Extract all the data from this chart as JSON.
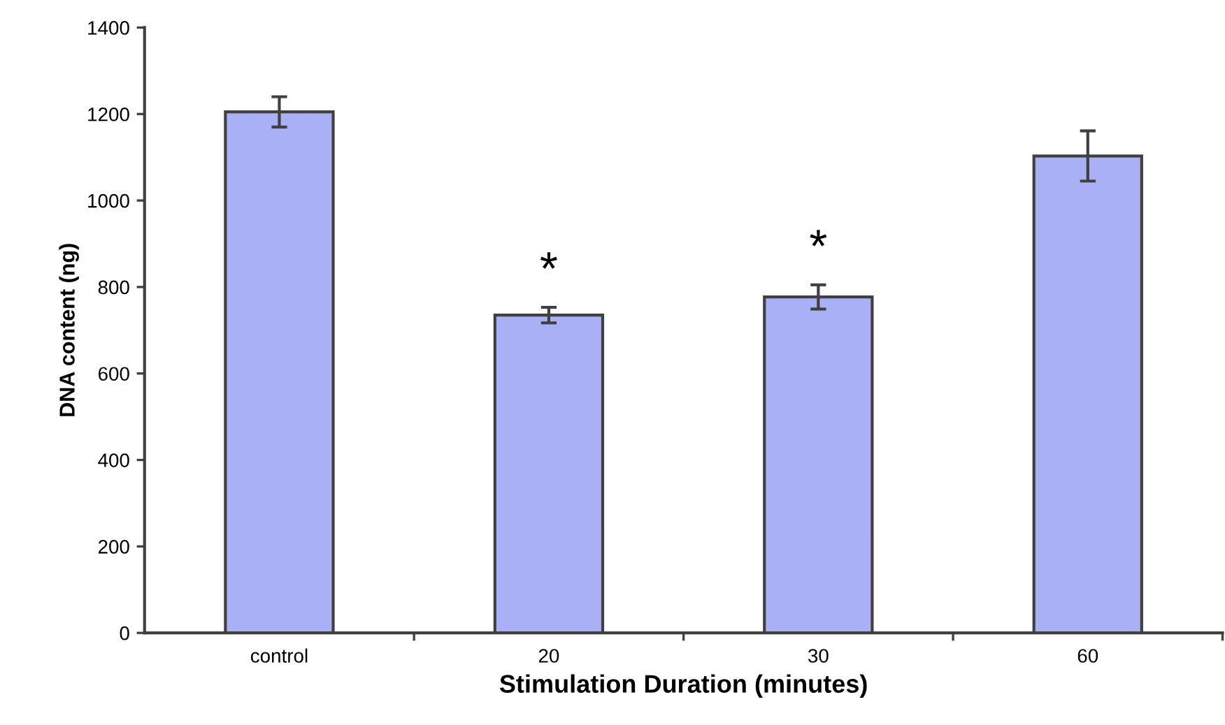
{
  "chart_data": {
    "type": "bar",
    "xlabel": "Stimulation Duration (minutes)",
    "ylabel": "DNA content (ng)",
    "categories": [
      "control",
      "20",
      "30",
      "60"
    ],
    "values": [
      1205,
      735,
      777,
      1103
    ],
    "errors": [
      35,
      18,
      28,
      58
    ],
    "color": "#aab0f5",
    "ylim": [
      0,
      1400
    ],
    "yticks": [
      0,
      200,
      400,
      600,
      800,
      1000,
      1200,
      1400
    ],
    "annotations": [
      {
        "text": "*",
        "x": "20",
        "y": 735
      },
      {
        "text": "*",
        "x": "30",
        "y": 777
      }
    ]
  }
}
